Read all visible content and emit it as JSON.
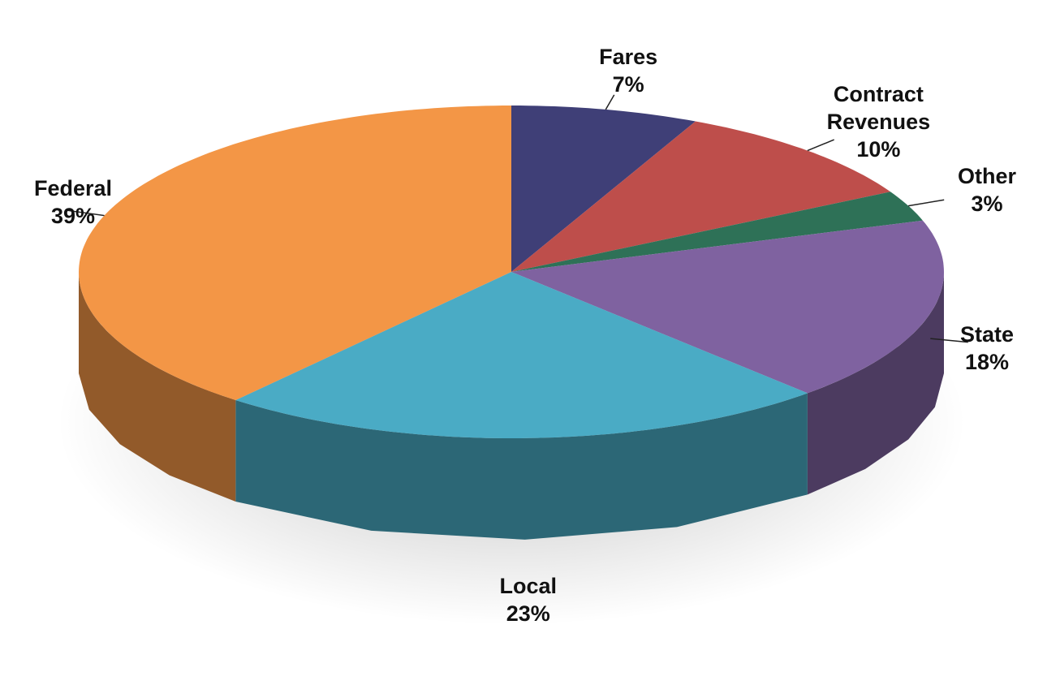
{
  "chart_data": {
    "type": "pie",
    "categories": [
      "Fares",
      "Contract Revenues",
      "Other",
      "State",
      "Local",
      "Federal"
    ],
    "values": [
      7,
      10,
      3,
      18,
      23,
      39
    ],
    "value_labels": [
      "7%",
      "10%",
      "3%",
      "18%",
      "23%",
      "39%"
    ],
    "colors": [
      "#3f3f77",
      "#be4e4b",
      "#2e7157",
      "#7f62a0",
      "#4aabc5",
      "#f39646"
    ]
  }
}
